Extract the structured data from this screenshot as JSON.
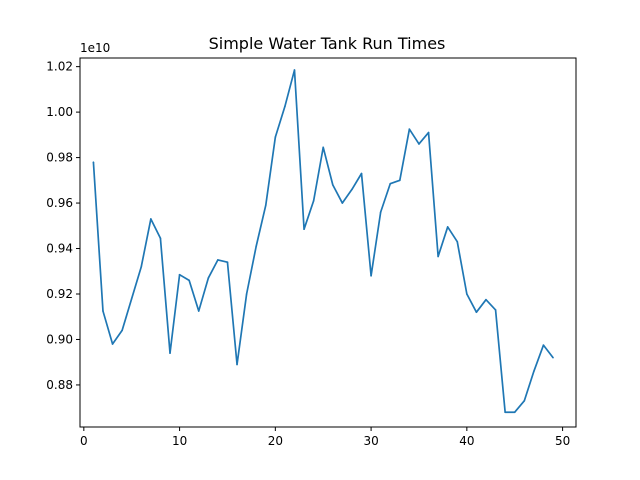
{
  "chart_data": {
    "type": "line",
    "title": "Simple Water Tank Run Times",
    "xlabel": "",
    "ylabel": "",
    "y_offset_label": "1e10",
    "xlim": [
      -0.4,
      51.4
    ],
    "ylim": [
      0.8615,
      1.0238
    ],
    "x_ticks": [
      0,
      10,
      20,
      30,
      40,
      50
    ],
    "x_tick_labels": [
      "0",
      "10",
      "20",
      "30",
      "40",
      "50"
    ],
    "y_ticks": [
      0.88,
      0.9,
      0.92,
      0.94,
      0.96,
      0.98,
      1.0,
      1.02
    ],
    "y_tick_labels": [
      "0.88",
      "0.90",
      "0.92",
      "0.94",
      "0.96",
      "0.98",
      "1.00",
      "1.02"
    ],
    "grid": false,
    "line_color": "#1f77b4",
    "series": [
      {
        "x": [
          1,
          2,
          3,
          4,
          5,
          6,
          7,
          8,
          9,
          10,
          11,
          12,
          13,
          14,
          15,
          16,
          17,
          18,
          19,
          20,
          21,
          22,
          23,
          24,
          25,
          26,
          27,
          28,
          29,
          30,
          31,
          32,
          33,
          34,
          35,
          36,
          37,
          38,
          39,
          40,
          41,
          42,
          43,
          44,
          45,
          46,
          47,
          48,
          49
        ],
        "values": [
          0.978,
          0.9125,
          0.898,
          0.904,
          0.918,
          0.932,
          0.953,
          0.9445,
          0.894,
          0.9285,
          0.926,
          0.9125,
          0.927,
          0.935,
          0.934,
          0.889,
          0.92,
          0.941,
          0.959,
          0.989,
          1.0025,
          1.0185,
          0.9485,
          0.961,
          0.9845,
          0.968,
          0.96,
          0.966,
          0.973,
          0.928,
          0.956,
          0.9685,
          0.97,
          0.9925,
          0.986,
          0.991,
          0.9365,
          0.9495,
          0.943,
          0.92,
          0.912,
          0.9175,
          0.913,
          0.868,
          0.868,
          0.873,
          0.886,
          0.8975,
          0.892
        ]
      }
    ]
  }
}
